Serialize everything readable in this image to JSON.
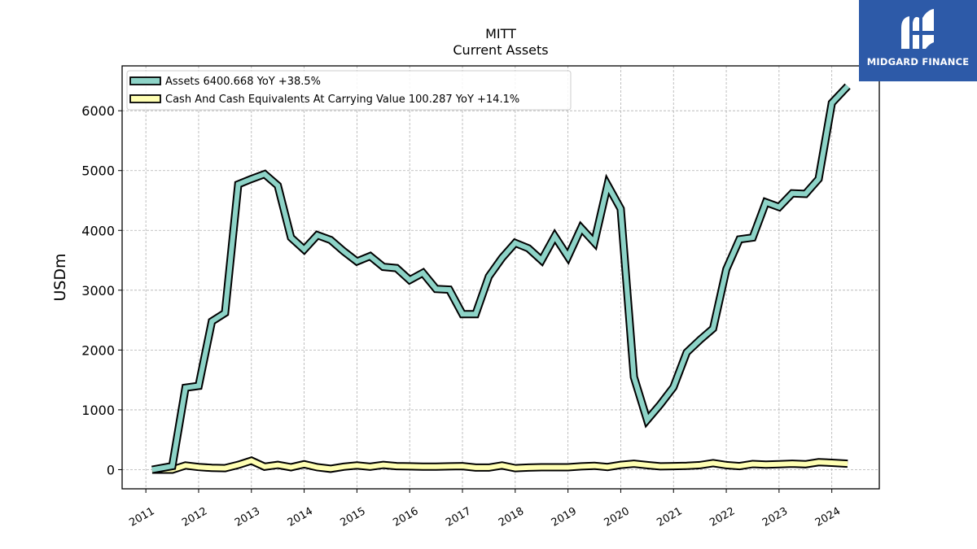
{
  "chart_data": {
    "type": "line",
    "title": "MITT",
    "subtitle": "Current  Assets",
    "ylabel": "USDm",
    "ylim": [
      -320,
      6750
    ],
    "xlim": [
      2010.55,
      2024.9
    ],
    "grid": true,
    "legend_position": "top-left",
    "y_ticks": [
      0,
      1000,
      2000,
      3000,
      4000,
      5000,
      6000
    ],
    "y_tick_labels": [
      "0",
      "1000",
      "2000",
      "3000",
      "4000",
      "5000",
      "6000"
    ],
    "x_ticks": [
      2011,
      2012,
      2013,
      2014,
      2015,
      2016,
      2017,
      2018,
      2019,
      2020,
      2021,
      2022,
      2023,
      2024
    ],
    "x_tick_labels": [
      "2011",
      "2012",
      "2013",
      "2014",
      "2015",
      "2016",
      "2017",
      "2018",
      "2019",
      "2020",
      "2021",
      "2022",
      "2023",
      "2024"
    ],
    "series": [
      {
        "name": "Assets  6400.668 YoY +38.5%",
        "color": "#8dd3c7",
        "x": [
          2011.12,
          2011.5,
          2011.75,
          2012.0,
          2012.25,
          2012.5,
          2012.75,
          2013.0,
          2013.25,
          2013.5,
          2013.75,
          2014.0,
          2014.25,
          2014.5,
          2014.75,
          2015.0,
          2015.25,
          2015.5,
          2015.75,
          2016.0,
          2016.25,
          2016.5,
          2016.75,
          2017.0,
          2017.25,
          2017.5,
          2017.75,
          2018.0,
          2018.25,
          2018.5,
          2018.75,
          2019.0,
          2019.25,
          2019.5,
          2019.75,
          2020.0,
          2020.25,
          2020.5,
          2020.75,
          2021.0,
          2021.25,
          2021.5,
          2021.75,
          2022.0,
          2022.25,
          2022.5,
          2022.75,
          2023.0,
          2023.25,
          2023.5,
          2023.75,
          2024.0,
          2024.3
        ],
        "values": [
          0,
          60,
          1370,
          1400,
          2480,
          2620,
          4770,
          4860,
          4940,
          4750,
          3880,
          3680,
          3920,
          3840,
          3650,
          3480,
          3570,
          3390,
          3370,
          3170,
          3290,
          3020,
          3010,
          2600,
          2600,
          3230,
          3540,
          3790,
          3700,
          3500,
          3900,
          3560,
          4040,
          3800,
          4760,
          4360,
          1550,
          830,
          1090,
          1380,
          1960,
          2170,
          2360,
          3350,
          3850,
          3880,
          4470,
          4390,
          4620,
          4610,
          4860,
          6130,
          6410
        ]
      },
      {
        "name": "Cash And Cash Equivalents At Carrying Value  100.287 YoY +14.1%",
        "color": "#ffffb3",
        "x": [
          2011.12,
          2011.5,
          2011.75,
          2012.0,
          2012.25,
          2012.5,
          2012.75,
          2013.0,
          2013.25,
          2013.5,
          2013.75,
          2014.0,
          2014.25,
          2014.5,
          2014.75,
          2015.0,
          2015.25,
          2015.5,
          2015.75,
          2016.0,
          2016.25,
          2016.5,
          2016.75,
          2017.0,
          2017.25,
          2017.5,
          2017.75,
          2018.0,
          2018.25,
          2018.5,
          2018.75,
          2019.0,
          2019.25,
          2019.5,
          2019.75,
          2020.0,
          2020.25,
          2020.5,
          2020.75,
          2021.0,
          2021.25,
          2021.5,
          2021.75,
          2022.0,
          2022.25,
          2022.5,
          2022.75,
          2023.0,
          2023.25,
          2023.5,
          2023.75,
          2024.0,
          2024.3
        ],
        "values": [
          0,
          0,
          70,
          45,
          30,
          25,
          80,
          150,
          50,
          80,
          40,
          90,
          40,
          15,
          50,
          70,
          50,
          80,
          60,
          55,
          50,
          50,
          55,
          60,
          35,
          35,
          70,
          25,
          35,
          40,
          40,
          40,
          55,
          65,
          45,
          80,
          100,
          75,
          55,
          60,
          65,
          75,
          110,
          75,
          60,
          95,
          85,
          90,
          100,
          90,
          125,
          115,
          100
        ]
      }
    ]
  },
  "logo": {
    "text": "MIDGARD FINANCE",
    "background": "#2d5aa8"
  }
}
